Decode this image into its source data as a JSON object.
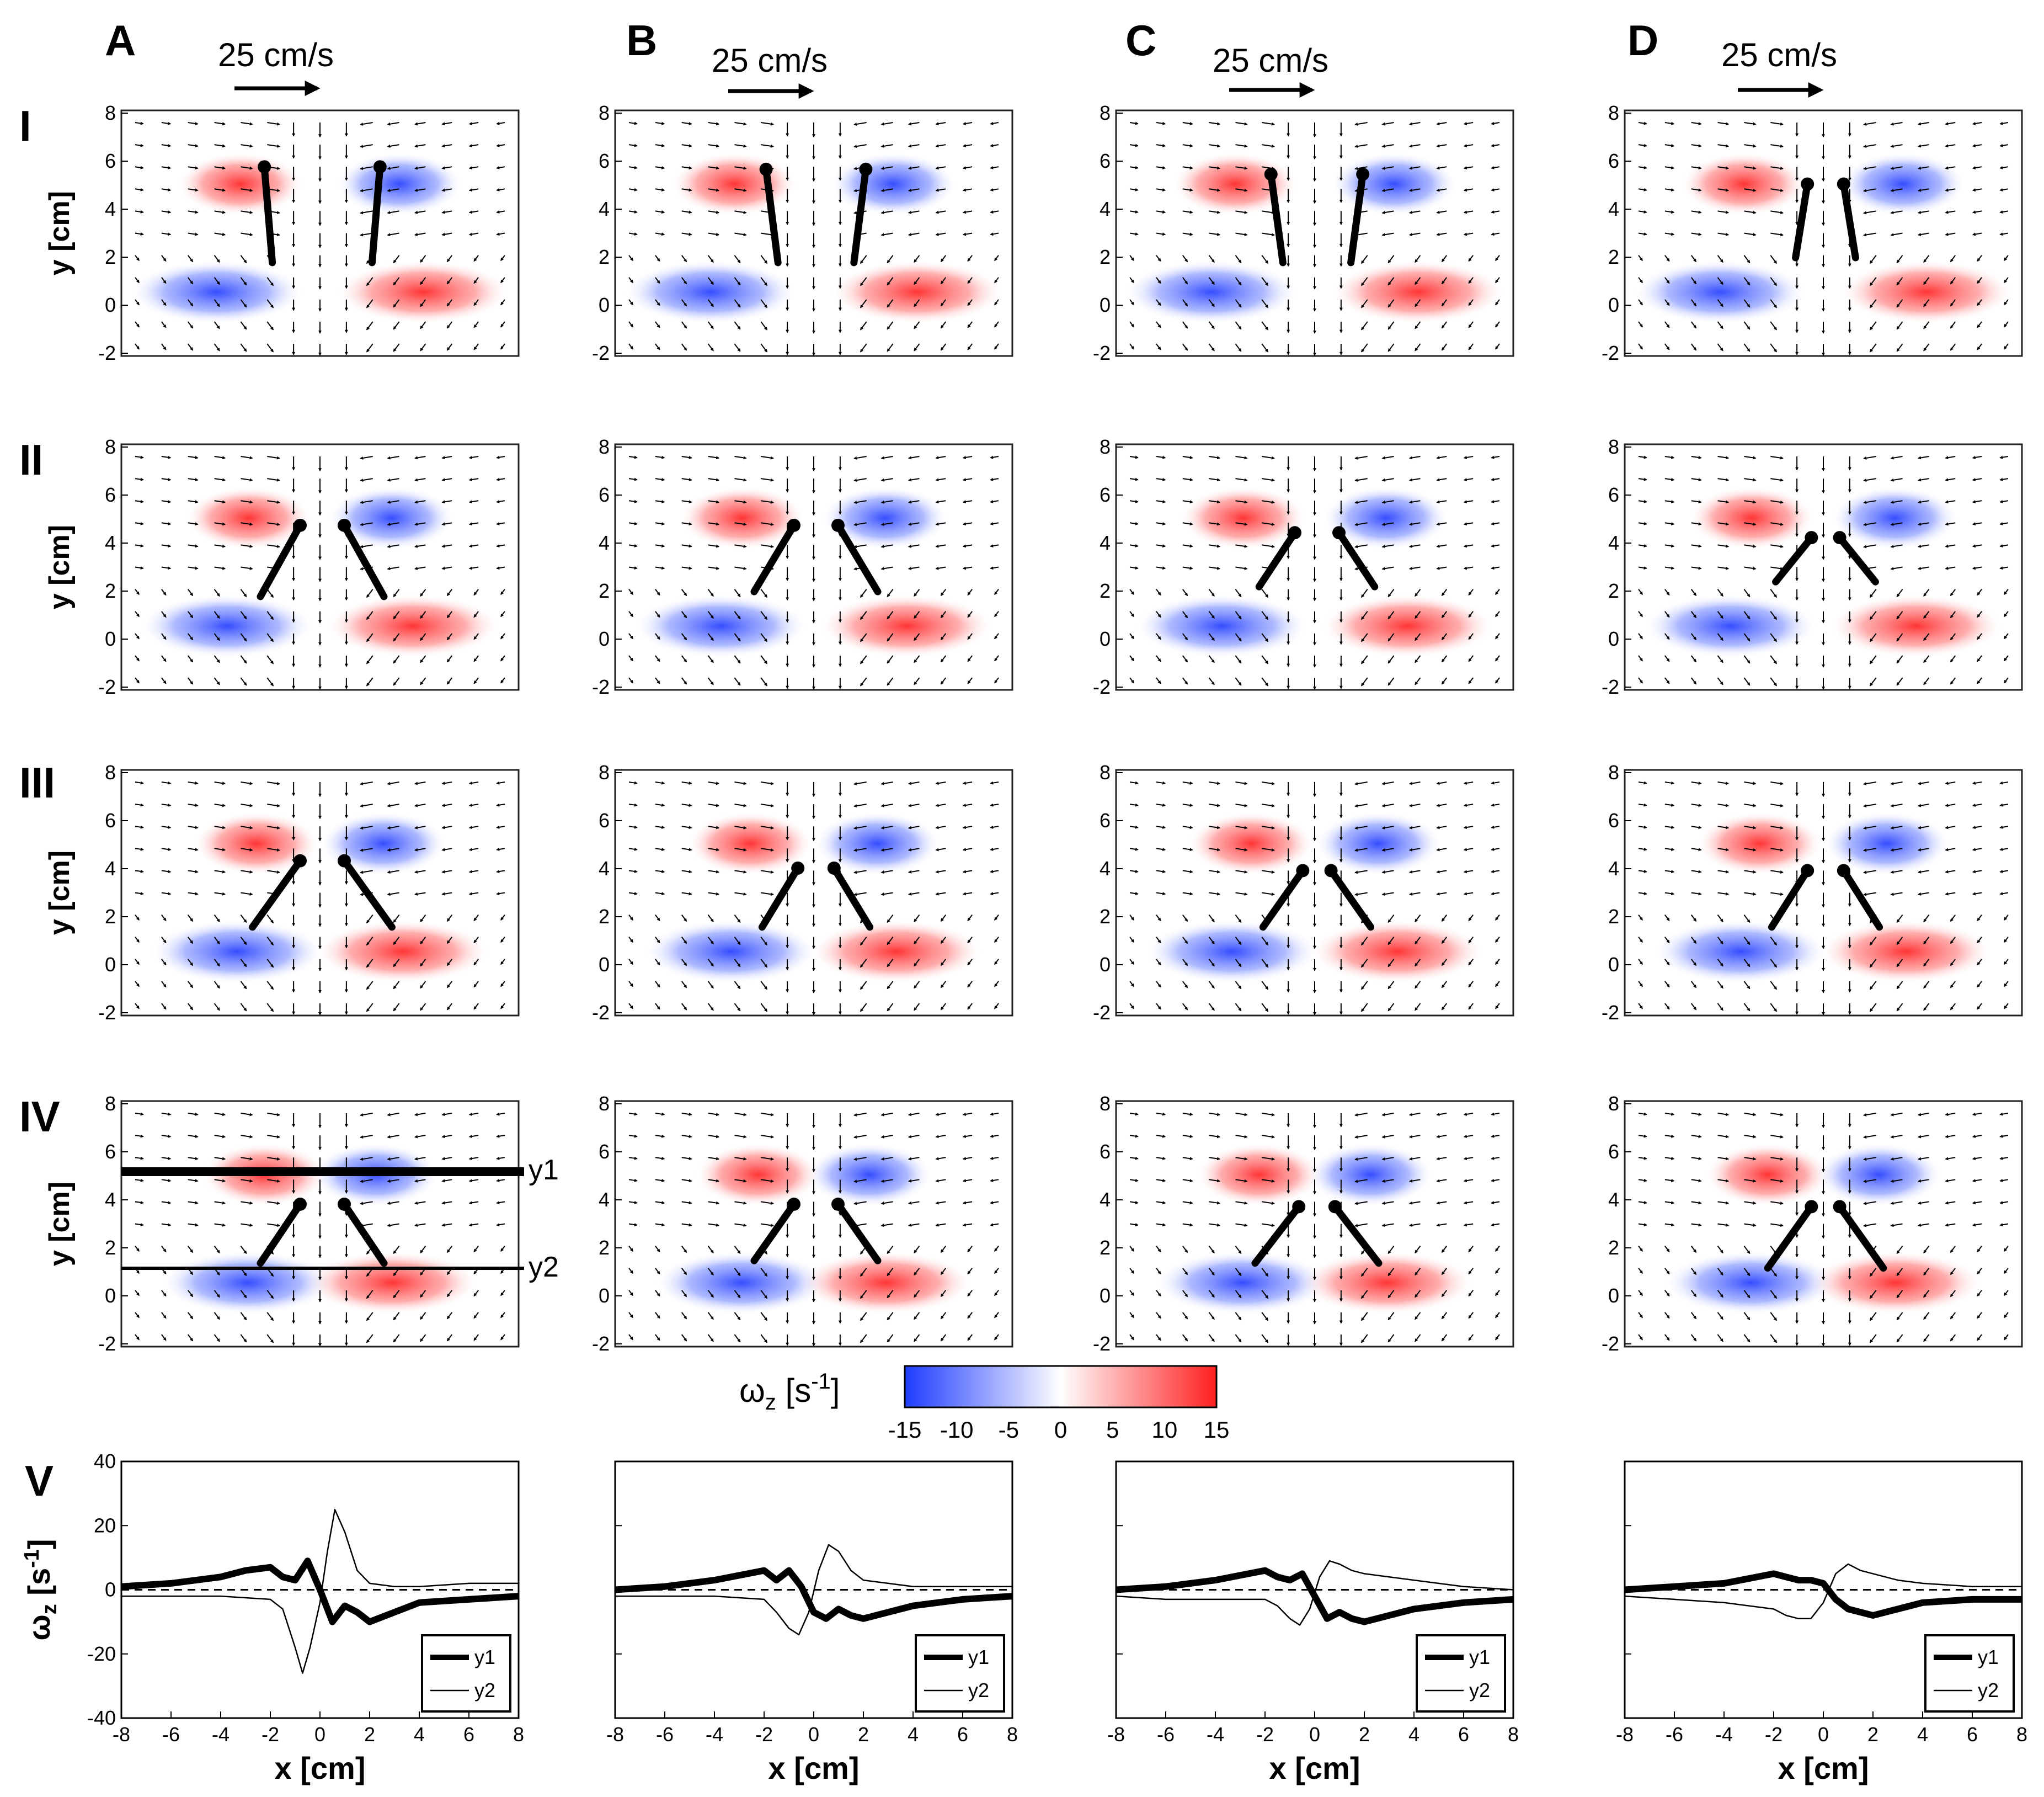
{
  "figure": {
    "columns": [
      "A",
      "B",
      "C",
      "D"
    ],
    "rows": [
      "I",
      "II",
      "III",
      "IV"
    ],
    "row_v_label": "V",
    "scale_bar_label": "25 cm/s",
    "y_axis_label": "y [cm]",
    "line_labels": {
      "y1": "y1",
      "y2": "y2"
    },
    "colorbar": {
      "label_main": "ω",
      "label_sub": "z",
      "label_unit": " [s",
      "label_exp": "-1",
      "label_close": "]",
      "ticks": [
        "-15",
        "-10",
        "-5",
        "0",
        "5",
        "10",
        "15"
      ],
      "range": [
        -15,
        15
      ],
      "low_color": "#1f3cff",
      "mid_color": "#ffffff",
      "high_color": "#ff1f1f"
    },
    "field_panel": {
      "x_range": [
        -8,
        8
      ],
      "y_range": [
        -2,
        8
      ],
      "y_ticks": [
        "8",
        "6",
        "4",
        "2",
        "0",
        "-2"
      ]
    }
  },
  "chart_data": [
    {
      "type": "line",
      "panel": "V-A",
      "xlabel": "x [cm]",
      "ylabel_main": "ω",
      "ylabel_sub": "z",
      "ylabel_unit": " [s",
      "ylabel_exp": "-1",
      "ylabel_close": "]",
      "xlim": [
        -8,
        8
      ],
      "ylim": [
        -40,
        40
      ],
      "x_ticks": [
        "-8",
        "-6",
        "-4",
        "-2",
        "0",
        "2",
        "4",
        "6",
        "8"
      ],
      "y_ticks": [
        "40",
        "20",
        "0",
        "-20",
        "-40"
      ],
      "legend": [
        "y1",
        "y2"
      ],
      "series": [
        {
          "name": "y1",
          "x": [
            -8,
            -6,
            -4,
            -3,
            -2,
            -1.5,
            -1,
            -0.5,
            0,
            0.5,
            1,
            1.5,
            2,
            3,
            4,
            6,
            8
          ],
          "values": [
            1,
            2,
            4,
            6,
            7,
            4,
            3,
            9,
            0,
            -10,
            -5,
            -7,
            -10,
            -7,
            -4,
            -3,
            -2
          ]
        },
        {
          "name": "y2",
          "x": [
            -8,
            -6,
            -4,
            -2,
            -1.5,
            -1,
            -0.7,
            -0.4,
            0,
            0.3,
            0.6,
            1,
            1.5,
            2,
            3,
            4,
            6,
            8
          ],
          "values": [
            -2,
            -2,
            -2,
            -3,
            -6,
            -18,
            -26,
            -18,
            -4,
            12,
            25,
            18,
            6,
            2,
            1,
            1,
            2,
            2
          ]
        }
      ]
    },
    {
      "type": "line",
      "panel": "V-B",
      "xlabel": "x [cm]",
      "xlim": [
        -8,
        8
      ],
      "ylim": [
        -40,
        40
      ],
      "x_ticks": [
        "-8",
        "-6",
        "-4",
        "-2",
        "0",
        "2",
        "4",
        "6",
        "8"
      ],
      "legend": [
        "y1",
        "y2"
      ],
      "series": [
        {
          "name": "y1",
          "x": [
            -8,
            -6,
            -4,
            -2,
            -1.5,
            -1,
            -0.5,
            0,
            0.5,
            1,
            1.5,
            2,
            3,
            4,
            6,
            8
          ],
          "values": [
            0,
            1,
            3,
            6,
            3,
            6,
            1,
            -7,
            -9,
            -6,
            -8,
            -9,
            -7,
            -5,
            -3,
            -2
          ]
        },
        {
          "name": "y2",
          "x": [
            -8,
            -6,
            -4,
            -2,
            -1.5,
            -1,
            -0.6,
            -0.2,
            0.2,
            0.6,
            1,
            1.5,
            2,
            3,
            4,
            6,
            8
          ],
          "values": [
            -2,
            -2,
            -2,
            -3,
            -7,
            -12,
            -14,
            -7,
            6,
            14,
            12,
            6,
            3,
            2,
            1,
            1,
            1
          ]
        }
      ]
    },
    {
      "type": "line",
      "panel": "V-C",
      "xlabel": "x [cm]",
      "xlim": [
        -8,
        8
      ],
      "ylim": [
        -40,
        40
      ],
      "x_ticks": [
        "-8",
        "-6",
        "-4",
        "-2",
        "0",
        "2",
        "4",
        "6",
        "8"
      ],
      "legend": [
        "y1",
        "y2"
      ],
      "series": [
        {
          "name": "y1",
          "x": [
            -8,
            -6,
            -4,
            -2,
            -1.5,
            -1,
            -0.5,
            0,
            0.5,
            1,
            1.5,
            2,
            3,
            4,
            6,
            8
          ],
          "values": [
            0,
            1,
            3,
            6,
            4,
            3,
            5,
            -2,
            -9,
            -7,
            -9,
            -10,
            -8,
            -6,
            -4,
            -3
          ]
        },
        {
          "name": "y2",
          "x": [
            -8,
            -6,
            -4,
            -2,
            -1.5,
            -1,
            -0.6,
            -0.2,
            0.2,
            0.6,
            1,
            1.5,
            2,
            3,
            4,
            6,
            8
          ],
          "values": [
            -2,
            -3,
            -3,
            -3,
            -5,
            -9,
            -11,
            -6,
            4,
            9,
            8,
            6,
            5,
            4,
            3,
            1,
            0
          ]
        }
      ]
    },
    {
      "type": "line",
      "panel": "V-D",
      "xlabel": "x [cm]",
      "xlim": [
        -8,
        8
      ],
      "ylim": [
        -40,
        40
      ],
      "x_ticks": [
        "-8",
        "-6",
        "-4",
        "-2",
        "0",
        "2",
        "4",
        "6",
        "8"
      ],
      "legend": [
        "y1",
        "y2"
      ],
      "series": [
        {
          "name": "y1",
          "x": [
            -8,
            -6,
            -4,
            -2,
            -1.5,
            -1,
            -0.5,
            0,
            0.5,
            1,
            1.5,
            2,
            3,
            4,
            6,
            8
          ],
          "values": [
            0,
            1,
            2,
            5,
            4,
            3,
            3,
            2,
            -3,
            -6,
            -7,
            -8,
            -6,
            -4,
            -3,
            -3
          ]
        },
        {
          "name": "y2",
          "x": [
            -8,
            -6,
            -4,
            -2,
            -1.5,
            -1,
            -0.5,
            0,
            0.5,
            1,
            1.5,
            2,
            3,
            4,
            6,
            8
          ],
          "values": [
            -2,
            -3,
            -4,
            -6,
            -8,
            -9,
            -9,
            -4,
            5,
            8,
            6,
            5,
            3,
            2,
            1,
            1
          ]
        }
      ]
    }
  ]
}
